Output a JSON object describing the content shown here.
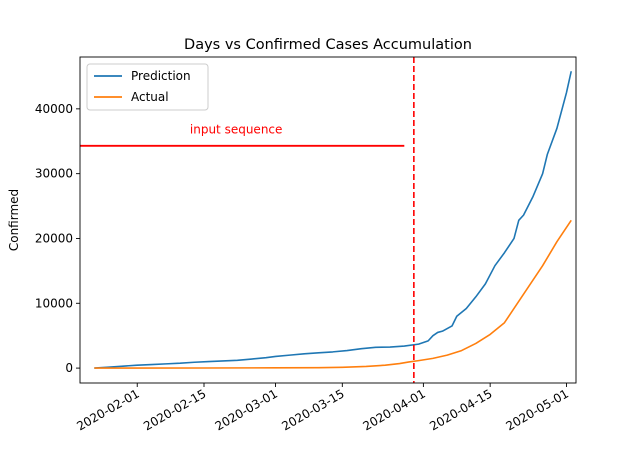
{
  "chart_data": {
    "type": "line",
    "title": "Days vs Confirmed Cases Accumulation",
    "xlabel": "",
    "ylabel": "Confirmed",
    "x_type": "date",
    "xlim": [
      "2020-01-20",
      "2020-05-03"
    ],
    "ylim": [
      -2300,
      48000
    ],
    "x_ticks": [
      "2020-02-01",
      "2020-02-15",
      "2020-03-01",
      "2020-03-15",
      "2020-04-01",
      "2020-04-15",
      "2020-05-01"
    ],
    "y_ticks": [
      0,
      10000,
      20000,
      30000,
      40000
    ],
    "y_tick_labels": [
      "0",
      "10000",
      "20000",
      "30000",
      "40000"
    ],
    "legend_position": "top-left",
    "series": [
      {
        "name": "Prediction",
        "color": "#1f77b4",
        "points": [
          [
            "2020-01-23",
            0
          ],
          [
            "2020-01-26",
            150
          ],
          [
            "2020-01-29",
            300
          ],
          [
            "2020-02-01",
            450
          ],
          [
            "2020-02-04",
            550
          ],
          [
            "2020-02-07",
            650
          ],
          [
            "2020-02-10",
            750
          ],
          [
            "2020-02-13",
            900
          ],
          [
            "2020-02-16",
            1000
          ],
          [
            "2020-02-19",
            1100
          ],
          [
            "2020-02-22",
            1200
          ],
          [
            "2020-02-25",
            1400
          ],
          [
            "2020-02-28",
            1600
          ],
          [
            "2020-03-01",
            1800
          ],
          [
            "2020-03-04",
            2000
          ],
          [
            "2020-03-07",
            2200
          ],
          [
            "2020-03-10",
            2350
          ],
          [
            "2020-03-13",
            2500
          ],
          [
            "2020-03-16",
            2700
          ],
          [
            "2020-03-19",
            3000
          ],
          [
            "2020-03-22",
            3200
          ],
          [
            "2020-03-25",
            3250
          ],
          [
            "2020-03-28",
            3400
          ],
          [
            "2020-03-31",
            3700
          ],
          [
            "2020-04-02",
            4200
          ],
          [
            "2020-04-03",
            5000
          ],
          [
            "2020-04-04",
            5500
          ],
          [
            "2020-04-05",
            5700
          ],
          [
            "2020-04-07",
            6500
          ],
          [
            "2020-04-08",
            8000
          ],
          [
            "2020-04-10",
            9200
          ],
          [
            "2020-04-12",
            11000
          ],
          [
            "2020-04-14",
            13000
          ],
          [
            "2020-04-16",
            15800
          ],
          [
            "2020-04-18",
            17800
          ],
          [
            "2020-04-20",
            20000
          ],
          [
            "2020-04-21",
            22800
          ],
          [
            "2020-04-22",
            23600
          ],
          [
            "2020-04-24",
            26500
          ],
          [
            "2020-04-26",
            30000
          ],
          [
            "2020-04-27",
            33000
          ],
          [
            "2020-04-29",
            37000
          ],
          [
            "2020-05-01",
            42500
          ],
          [
            "2020-05-02",
            45800
          ]
        ]
      },
      {
        "name": "Actual",
        "color": "#ff7f0e",
        "points": [
          [
            "2020-01-23",
            0
          ],
          [
            "2020-02-01",
            5
          ],
          [
            "2020-02-15",
            15
          ],
          [
            "2020-03-01",
            40
          ],
          [
            "2020-03-10",
            60
          ],
          [
            "2020-03-15",
            120
          ],
          [
            "2020-03-20",
            250
          ],
          [
            "2020-03-24",
            450
          ],
          [
            "2020-03-27",
            700
          ],
          [
            "2020-03-29",
            950
          ],
          [
            "2020-03-31",
            1150
          ],
          [
            "2020-04-03",
            1500
          ],
          [
            "2020-04-06",
            2000
          ],
          [
            "2020-04-09",
            2700
          ],
          [
            "2020-04-12",
            3800
          ],
          [
            "2020-04-15",
            5200
          ],
          [
            "2020-04-18",
            7000
          ],
          [
            "2020-04-20",
            9200
          ],
          [
            "2020-04-23",
            12500
          ],
          [
            "2020-04-26",
            15800
          ],
          [
            "2020-04-29",
            19500
          ],
          [
            "2020-05-02",
            22800
          ]
        ]
      }
    ],
    "annotations": {
      "cutoff_line": {
        "date": "2020-03-30",
        "color": "#ff0000",
        "style": "dashed"
      },
      "input_sequence": {
        "label": "input sequence",
        "color": "#ff0000",
        "x_start": "2020-01-20",
        "x_end": "2020-03-28",
        "y": 34300,
        "label_y": 36800
      }
    }
  }
}
